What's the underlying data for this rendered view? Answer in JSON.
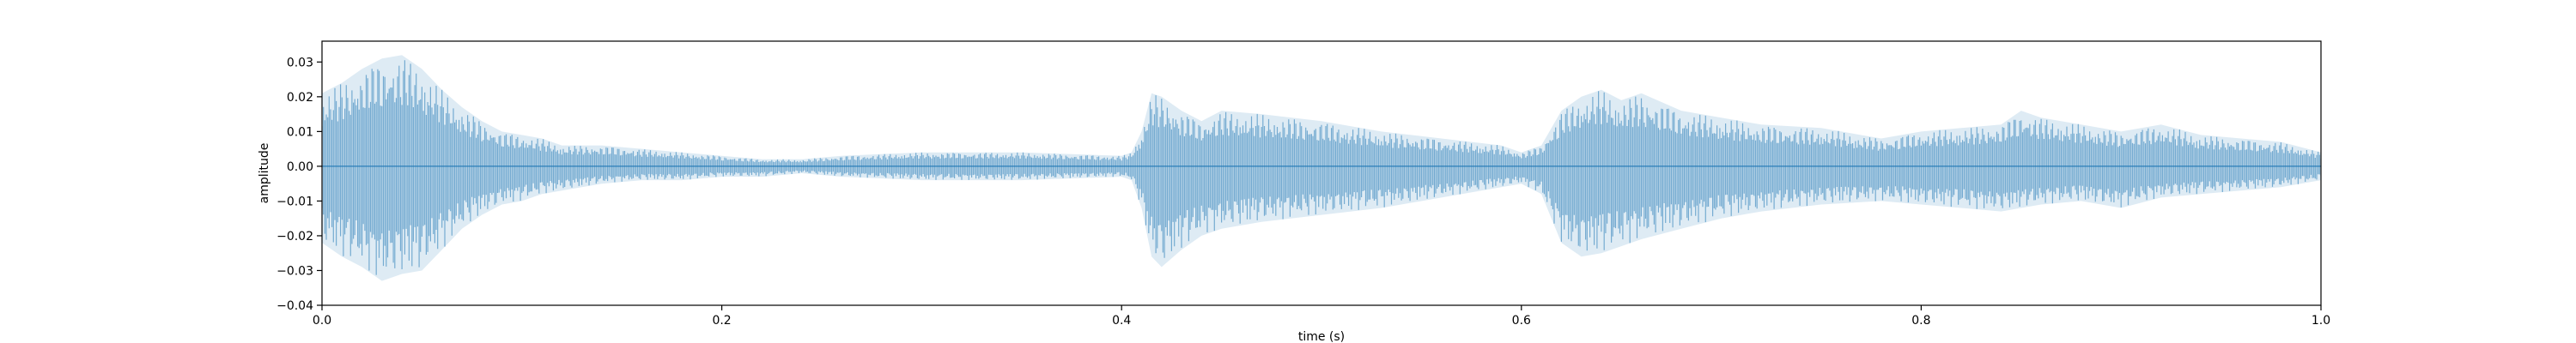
{
  "chart_data": {
    "type": "area",
    "title": "",
    "xlabel": "time (s)",
    "ylabel": "amplitude",
    "xlim": [
      0.0,
      1.0
    ],
    "ylim": [
      -0.04,
      0.036
    ],
    "x_ticks": [
      0.0,
      0.2,
      0.4,
      0.6,
      0.8,
      1.0
    ],
    "x_tick_labels": [
      "0.0",
      "0.2",
      "0.4",
      "0.6",
      "0.8",
      "1.0"
    ],
    "y_ticks": [
      -0.04,
      -0.03,
      -0.02,
      -0.01,
      0.0,
      0.01,
      0.02,
      0.03
    ],
    "y_tick_labels": [
      "−0.04",
      "−0.03",
      "−0.02",
      "−0.01",
      "0.00",
      "0.01",
      "0.02",
      "0.03"
    ],
    "grid": false,
    "legend": "none",
    "series": [
      {
        "color": "#1f77b4",
        "fill_opacity": 0.3,
        "envelope_t": [
          0.0,
          0.01,
          0.02,
          0.03,
          0.04,
          0.05,
          0.06,
          0.07,
          0.08,
          0.09,
          0.1,
          0.11,
          0.12,
          0.14,
          0.16,
          0.18,
          0.2,
          0.22,
          0.24,
          0.26,
          0.3,
          0.35,
          0.4,
          0.405,
          0.41,
          0.415,
          0.42,
          0.43,
          0.44,
          0.45,
          0.47,
          0.5,
          0.53,
          0.56,
          0.59,
          0.6,
          0.61,
          0.62,
          0.63,
          0.64,
          0.65,
          0.66,
          0.68,
          0.7,
          0.72,
          0.75,
          0.78,
          0.8,
          0.82,
          0.84,
          0.85,
          0.86,
          0.88,
          0.9,
          0.92,
          0.94,
          0.96,
          0.98,
          1.0
        ],
        "envelope_upper": [
          0.021,
          0.024,
          0.028,
          0.031,
          0.032,
          0.028,
          0.022,
          0.017,
          0.013,
          0.01,
          0.009,
          0.008,
          0.006,
          0.006,
          0.005,
          0.004,
          0.003,
          0.002,
          0.002,
          0.003,
          0.004,
          0.004,
          0.003,
          0.004,
          0.01,
          0.021,
          0.02,
          0.016,
          0.013,
          0.016,
          0.015,
          0.013,
          0.01,
          0.008,
          0.006,
          0.004,
          0.006,
          0.016,
          0.02,
          0.022,
          0.019,
          0.021,
          0.016,
          0.014,
          0.012,
          0.011,
          0.008,
          0.01,
          0.011,
          0.012,
          0.016,
          0.014,
          0.012,
          0.01,
          0.012,
          0.009,
          0.008,
          0.007,
          0.004
        ],
        "envelope_lower": [
          -0.022,
          -0.026,
          -0.029,
          -0.033,
          -0.031,
          -0.03,
          -0.024,
          -0.018,
          -0.014,
          -0.011,
          -0.01,
          -0.008,
          -0.007,
          -0.005,
          -0.004,
          -0.004,
          -0.003,
          -0.003,
          -0.002,
          -0.003,
          -0.004,
          -0.004,
          -0.003,
          -0.004,
          -0.012,
          -0.026,
          -0.029,
          -0.024,
          -0.02,
          -0.018,
          -0.016,
          -0.014,
          -0.012,
          -0.009,
          -0.006,
          -0.005,
          -0.008,
          -0.022,
          -0.026,
          -0.025,
          -0.023,
          -0.021,
          -0.018,
          -0.015,
          -0.013,
          -0.011,
          -0.01,
          -0.011,
          -0.012,
          -0.013,
          -0.012,
          -0.011,
          -0.01,
          -0.012,
          -0.009,
          -0.008,
          -0.007,
          -0.006,
          -0.004
        ]
      }
    ]
  }
}
